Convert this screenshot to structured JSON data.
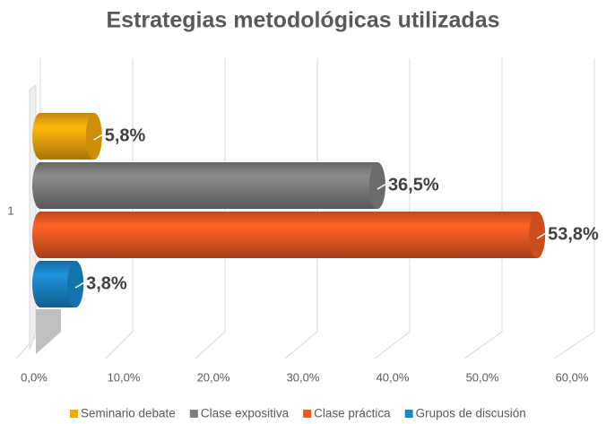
{
  "chart_data": {
    "type": "bar",
    "orientation": "horizontal",
    "title": "Estrategias metodológicas utilizadas",
    "categories": [
      "1"
    ],
    "series": [
      {
        "name": "Seminario debate",
        "color": "#f2a70c",
        "values": [
          5.8
        ],
        "value_labels": [
          "5,8%"
        ]
      },
      {
        "name": "Clase expositiva",
        "color": "#7f7f7f",
        "values": [
          36.5
        ],
        "value_labels": [
          "36,5%"
        ]
      },
      {
        "name": "Clase práctica",
        "color": "#f05a22",
        "values": [
          53.8
        ],
        "value_labels": [
          "53,8%"
        ]
      },
      {
        "name": "Grupos de discusión",
        "color": "#1a86c8",
        "values": [
          3.8
        ],
        "value_labels": [
          "3,8%"
        ]
      }
    ],
    "xlim": [
      0,
      60
    ],
    "xticks": [
      {
        "value": 0,
        "label": "0,0%"
      },
      {
        "value": 10,
        "label": "10,0%"
      },
      {
        "value": 20,
        "label": "20,0%"
      },
      {
        "value": 30,
        "label": "30,0%"
      },
      {
        "value": 40,
        "label": "40,0%"
      },
      {
        "value": 50,
        "label": "50,0%"
      },
      {
        "value": 60,
        "label": "60,0%"
      }
    ],
    "grid": true,
    "legend": "bottom"
  }
}
